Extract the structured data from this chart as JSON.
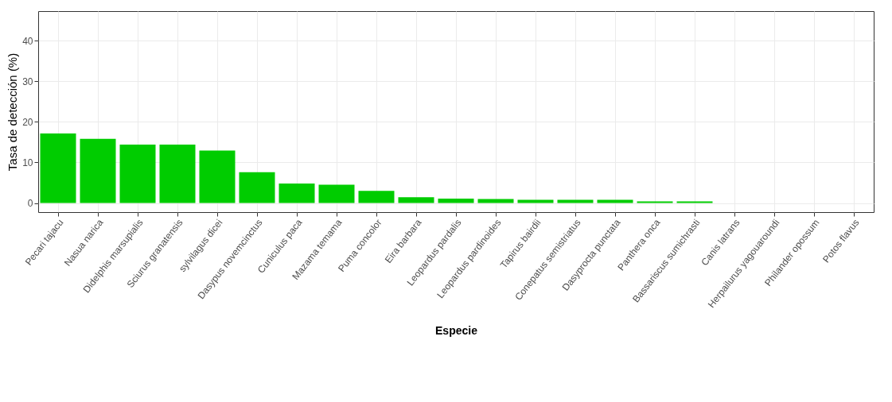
{
  "chart_data": {
    "type": "bar",
    "xlabel": "Especie",
    "ylabel": "Tasa de detección (%)",
    "categories": [
      "Pecari tajacu",
      "Nasua narica",
      "Didelphis marsupialis",
      "Sciurus granatensis",
      "sylvilagus dicei",
      "Dasypus novemcinctus",
      "Cuniculus paca",
      "Mazama temama",
      "Puma concolor",
      "Eira barbara",
      "Leopardus pardalis",
      "Leopardus pardinoides",
      "Tapirus bairdii",
      "Conepatus semistriatus",
      "Dasyprocta punctata",
      "Panthera onca",
      "Bassariscus sumichrasti",
      "Canis latrans",
      "Herpailurus yagouaroundi",
      "Philander opossum",
      "Potos flavus"
    ],
    "values": [
      17.1,
      15.8,
      14.4,
      14.4,
      12.9,
      7.6,
      4.8,
      4.5,
      3.0,
      1.4,
      1.1,
      1.0,
      0.8,
      0.8,
      0.8,
      0.4,
      0.4,
      0,
      0,
      0,
      0
    ],
    "color": "#00cc00",
    "ylim": [
      -2.25,
      47.25
    ],
    "yticks": [
      0,
      10,
      20,
      30,
      40
    ],
    "grid": true
  }
}
